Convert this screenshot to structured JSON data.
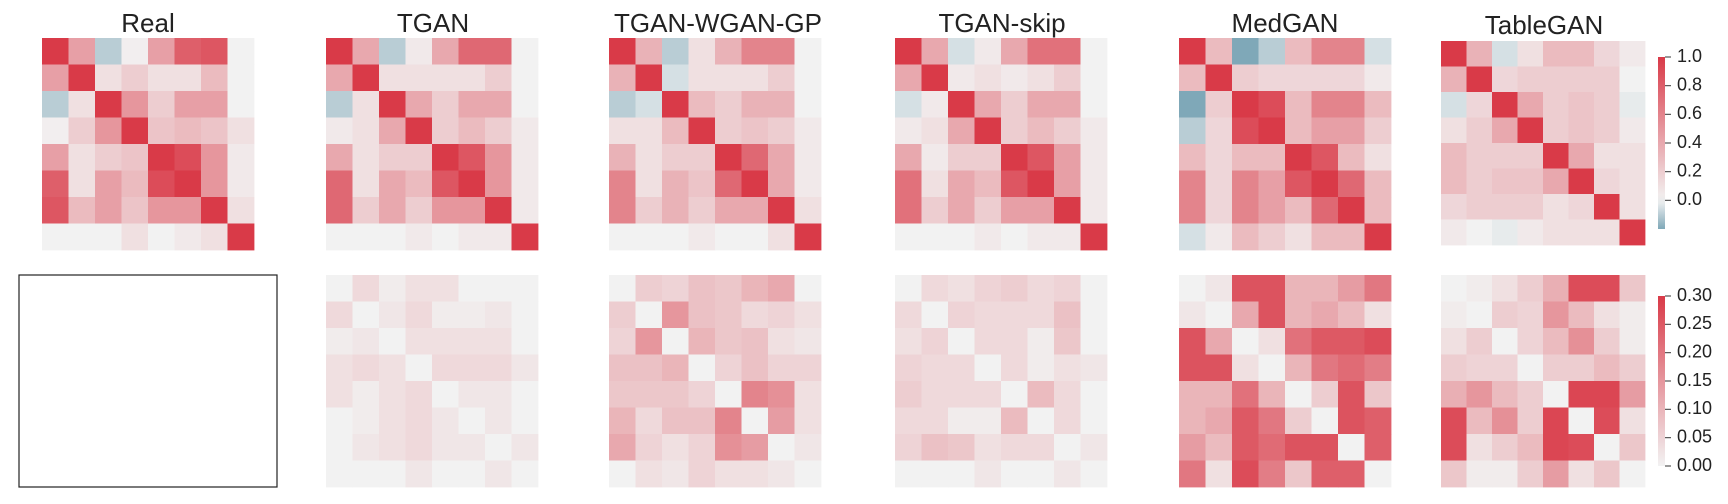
{
  "colorscale": {
    "negative": "#7fa8b8",
    "neutral": "#f2f2f2",
    "positive": "#d93a48"
  },
  "chart_data": {
    "type": "heatmap",
    "titles": [
      "Real",
      "TGAN",
      "TGAN-WGAN-GP",
      "TGAN-skip",
      "MedGAN",
      "TableGAN"
    ],
    "rows": [
      {
        "name": "correlation",
        "colorbar": {
          "min": -0.2,
          "max": 1.0,
          "ticks": [
            "1.0",
            "0.8",
            "0.6",
            "0.4",
            "0.2",
            "0.0"
          ],
          "tick_values": [
            1.0,
            0.8,
            0.6,
            0.4,
            0.2,
            0.0
          ]
        },
        "panels": [
          [
            [
              1,
              0.45,
              -0.1,
              0.02,
              0.45,
              0.8,
              0.85,
              0
            ],
            [
              0.45,
              1,
              0.1,
              0.2,
              0.1,
              0.1,
              0.3,
              0
            ],
            [
              -0.1,
              0.1,
              1,
              0.5,
              0.2,
              0.45,
              0.45,
              0
            ],
            [
              0.02,
              0.2,
              0.5,
              1,
              0.25,
              0.3,
              0.25,
              0.1
            ],
            [
              0.45,
              0.1,
              0.2,
              0.25,
              1,
              0.9,
              0.5,
              0.05
            ],
            [
              0.8,
              0.1,
              0.45,
              0.3,
              0.9,
              1,
              0.5,
              0.05
            ],
            [
              0.85,
              0.3,
              0.45,
              0.25,
              0.5,
              0.5,
              1,
              0.1
            ],
            [
              0,
              0,
              0,
              0.1,
              0,
              0.05,
              0.1,
              1
            ]
          ],
          [
            [
              1,
              0.4,
              -0.1,
              0.05,
              0.4,
              0.75,
              0.75,
              0
            ],
            [
              0.4,
              1,
              0.1,
              0.1,
              0.1,
              0.1,
              0.2,
              0
            ],
            [
              -0.1,
              0.1,
              1,
              0.4,
              0.2,
              0.4,
              0.4,
              0
            ],
            [
              0.05,
              0.1,
              0.4,
              1,
              0.2,
              0.3,
              0.2,
              0.05
            ],
            [
              0.4,
              0.1,
              0.2,
              0.2,
              1,
              0.85,
              0.5,
              0.05
            ],
            [
              0.75,
              0.1,
              0.4,
              0.3,
              0.85,
              1,
              0.5,
              0.05
            ],
            [
              0.75,
              0.2,
              0.4,
              0.2,
              0.5,
              0.5,
              1,
              0.05
            ],
            [
              0,
              0,
              0,
              0.05,
              0,
              0.05,
              0.05,
              1
            ]
          ],
          [
            [
              1,
              0.35,
              -0.1,
              0.1,
              0.35,
              0.6,
              0.6,
              0
            ],
            [
              0.35,
              1,
              -0.05,
              0.1,
              0.1,
              0.1,
              0.2,
              0
            ],
            [
              -0.1,
              -0.05,
              1,
              0.3,
              0.2,
              0.35,
              0.35,
              0
            ],
            [
              0.1,
              0.1,
              0.3,
              1,
              0.2,
              0.25,
              0.2,
              0.05
            ],
            [
              0.35,
              0.1,
              0.2,
              0.2,
              1,
              0.75,
              0.4,
              0.05
            ],
            [
              0.6,
              0.1,
              0.35,
              0.25,
              0.75,
              1,
              0.4,
              0.05
            ],
            [
              0.6,
              0.2,
              0.35,
              0.2,
              0.4,
              0.4,
              1,
              0.1
            ],
            [
              0,
              0,
              0,
              0.05,
              0,
              0,
              0.1,
              1
            ]
          ],
          [
            [
              1,
              0.4,
              -0.05,
              0.05,
              0.4,
              0.7,
              0.7,
              0
            ],
            [
              0.4,
              1,
              0.05,
              0.1,
              0.05,
              0.1,
              0.2,
              0
            ],
            [
              -0.05,
              0.05,
              1,
              0.4,
              0.2,
              0.4,
              0.4,
              0
            ],
            [
              0.05,
              0.1,
              0.4,
              1,
              0.2,
              0.3,
              0.2,
              0.05
            ],
            [
              0.4,
              0.05,
              0.2,
              0.2,
              1,
              0.85,
              0.45,
              0.05
            ],
            [
              0.7,
              0.1,
              0.4,
              0.3,
              0.85,
              1,
              0.45,
              0.05
            ],
            [
              0.7,
              0.2,
              0.4,
              0.2,
              0.45,
              0.45,
              1,
              0.05
            ],
            [
              0,
              0,
              0,
              0.05,
              0,
              0.05,
              0.05,
              1
            ]
          ],
          [
            [
              1,
              0.3,
              -0.2,
              -0.1,
              0.3,
              0.6,
              0.6,
              -0.05
            ],
            [
              0.3,
              1,
              0.2,
              0.15,
              0.15,
              0.15,
              0.15,
              0.05
            ],
            [
              -0.2,
              0.2,
              1,
              0.9,
              0.3,
              0.6,
              0.6,
              0.3
            ],
            [
              -0.1,
              0.15,
              0.9,
              1,
              0.3,
              0.45,
              0.45,
              0.2
            ],
            [
              0.3,
              0.15,
              0.3,
              0.3,
              1,
              0.85,
              0.3,
              0.1
            ],
            [
              0.6,
              0.15,
              0.6,
              0.45,
              0.85,
              1,
              0.75,
              0.3
            ],
            [
              0.6,
              0.15,
              0.6,
              0.45,
              0.3,
              0.75,
              1,
              0.3
            ],
            [
              -0.05,
              0.05,
              0.3,
              0.2,
              0.1,
              0.3,
              0.3,
              1
            ]
          ],
          [
            [
              1,
              0.35,
              -0.05,
              0.1,
              0.3,
              0.3,
              0.15,
              0.05
            ],
            [
              0.35,
              1,
              0.15,
              0.2,
              0.2,
              0.2,
              0.2,
              0
            ],
            [
              -0.05,
              0.15,
              1,
              0.4,
              0.2,
              0.25,
              0.2,
              -0.02
            ],
            [
              0.1,
              0.2,
              0.4,
              1,
              0.2,
              0.25,
              0.2,
              0.05
            ],
            [
              0.3,
              0.2,
              0.2,
              0.2,
              1,
              0.4,
              0.1,
              0.1
            ],
            [
              0.3,
              0.2,
              0.25,
              0.25,
              0.4,
              1,
              0.15,
              0.1
            ],
            [
              0.15,
              0.2,
              0.2,
              0.2,
              0.1,
              0.15,
              1,
              0.1
            ],
            [
              0.05,
              0,
              -0.02,
              0.05,
              0.1,
              0.1,
              0.1,
              1
            ]
          ]
        ]
      },
      {
        "name": "difference",
        "colorbar": {
          "min": 0.0,
          "max": 0.3,
          "ticks": [
            "0.30",
            "0.25",
            "0.20",
            "0.15",
            "0.10",
            "0.05",
            "0.00"
          ],
          "tick_values": [
            0.3,
            0.25,
            0.2,
            0.15,
            0.1,
            0.05,
            0.0
          ]
        },
        "panels": [
          null,
          [
            [
              0,
              0.04,
              0.01,
              0.03,
              0.03,
              0,
              0,
              0
            ],
            [
              0.04,
              0,
              0.02,
              0.04,
              0.01,
              0.01,
              0.02,
              0
            ],
            [
              0.01,
              0.02,
              0,
              0.03,
              0.03,
              0.03,
              0.03,
              0
            ],
            [
              0.03,
              0.04,
              0.03,
              0,
              0.04,
              0.04,
              0.04,
              0.02
            ],
            [
              0.03,
              0.01,
              0.03,
              0.04,
              0,
              0.02,
              0.02,
              0
            ],
            [
              0,
              0.01,
              0.03,
              0.04,
              0.02,
              0,
              0.02,
              0
            ],
            [
              0,
              0.02,
              0.03,
              0.04,
              0.02,
              0.02,
              0,
              0.02
            ],
            [
              0,
              0,
              0,
              0.02,
              0,
              0,
              0.02,
              0
            ]
          ],
          [
            [
              0,
              0.06,
              0.05,
              0.08,
              0.07,
              0.1,
              0.12,
              0
            ],
            [
              0.06,
              0,
              0.15,
              0.08,
              0.07,
              0.04,
              0.05,
              0.03
            ],
            [
              0.05,
              0.15,
              0,
              0.1,
              0.07,
              0.08,
              0.03,
              0.02
            ],
            [
              0.08,
              0.08,
              0.1,
              0,
              0.05,
              0.08,
              0.05,
              0.05
            ],
            [
              0.07,
              0.07,
              0.07,
              0.05,
              0,
              0.18,
              0.16,
              0.03
            ],
            [
              0.1,
              0.04,
              0.08,
              0.08,
              0.18,
              0,
              0.14,
              0.03
            ],
            [
              0.12,
              0.05,
              0.03,
              0.05,
              0.16,
              0.14,
              0,
              0.02
            ],
            [
              0,
              0.03,
              0.02,
              0.05,
              0.03,
              0.03,
              0.02,
              0
            ]
          ],
          [
            [
              0,
              0.04,
              0.03,
              0.05,
              0.06,
              0.04,
              0.05,
              0
            ],
            [
              0.04,
              0,
              0.05,
              0.04,
              0.04,
              0.04,
              0.08,
              0
            ],
            [
              0.03,
              0.05,
              0,
              0.04,
              0.04,
              0.01,
              0.07,
              0
            ],
            [
              0.05,
              0.04,
              0.04,
              0,
              0.04,
              0.01,
              0.03,
              0.02
            ],
            [
              0.06,
              0.04,
              0.04,
              0.04,
              0,
              0.09,
              0.04,
              0
            ],
            [
              0.04,
              0.04,
              0.01,
              0.01,
              0.09,
              0,
              0.04,
              0
            ],
            [
              0.05,
              0.08,
              0.07,
              0.03,
              0.04,
              0.04,
              0,
              0.02
            ],
            [
              0,
              0,
              0,
              0.02,
              0,
              0,
              0.02,
              0
            ]
          ],
          [
            [
              0,
              0.02,
              0.26,
              0.26,
              0.1,
              0.1,
              0.14,
              0.2
            ],
            [
              0.02,
              0,
              0.12,
              0.26,
              0.1,
              0.12,
              0.09,
              0.03
            ],
            [
              0.26,
              0.12,
              0,
              0.03,
              0.21,
              0.25,
              0.25,
              0.27
            ],
            [
              0.26,
              0.26,
              0.03,
              0,
              0.1,
              0.2,
              0.22,
              0.19
            ],
            [
              0.1,
              0.1,
              0.21,
              0.1,
              0,
              0.06,
              0.26,
              0.07
            ],
            [
              0.1,
              0.12,
              0.25,
              0.2,
              0.06,
              0,
              0.26,
              0.24
            ],
            [
              0.14,
              0.09,
              0.25,
              0.22,
              0.26,
              0.26,
              0,
              0.24
            ],
            [
              0.2,
              0.03,
              0.27,
              0.19,
              0.07,
              0.24,
              0.24,
              0
            ]
          ],
          [
            [
              0,
              0.01,
              0.03,
              0.06,
              0.11,
              0.27,
              0.27,
              0.07
            ],
            [
              0.01,
              0,
              0.06,
              0.05,
              0.15,
              0.09,
              0.03,
              0.01
            ],
            [
              0.03,
              0.06,
              0,
              0.05,
              0.09,
              0.16,
              0.06,
              0.01
            ],
            [
              0.06,
              0.05,
              0.05,
              0,
              0.06,
              0.06,
              0.09,
              0.06
            ],
            [
              0.11,
              0.15,
              0.09,
              0.06,
              0,
              0.28,
              0.28,
              0.14
            ],
            [
              0.27,
              0.09,
              0.16,
              0.06,
              0.28,
              0,
              0.27,
              0.03
            ],
            [
              0.27,
              0.03,
              0.06,
              0.09,
              0.28,
              0.27,
              0,
              0.07
            ],
            [
              0.07,
              0.01,
              0.01,
              0.06,
              0.14,
              0.03,
              0.07,
              0
            ]
          ]
        ]
      }
    ]
  }
}
